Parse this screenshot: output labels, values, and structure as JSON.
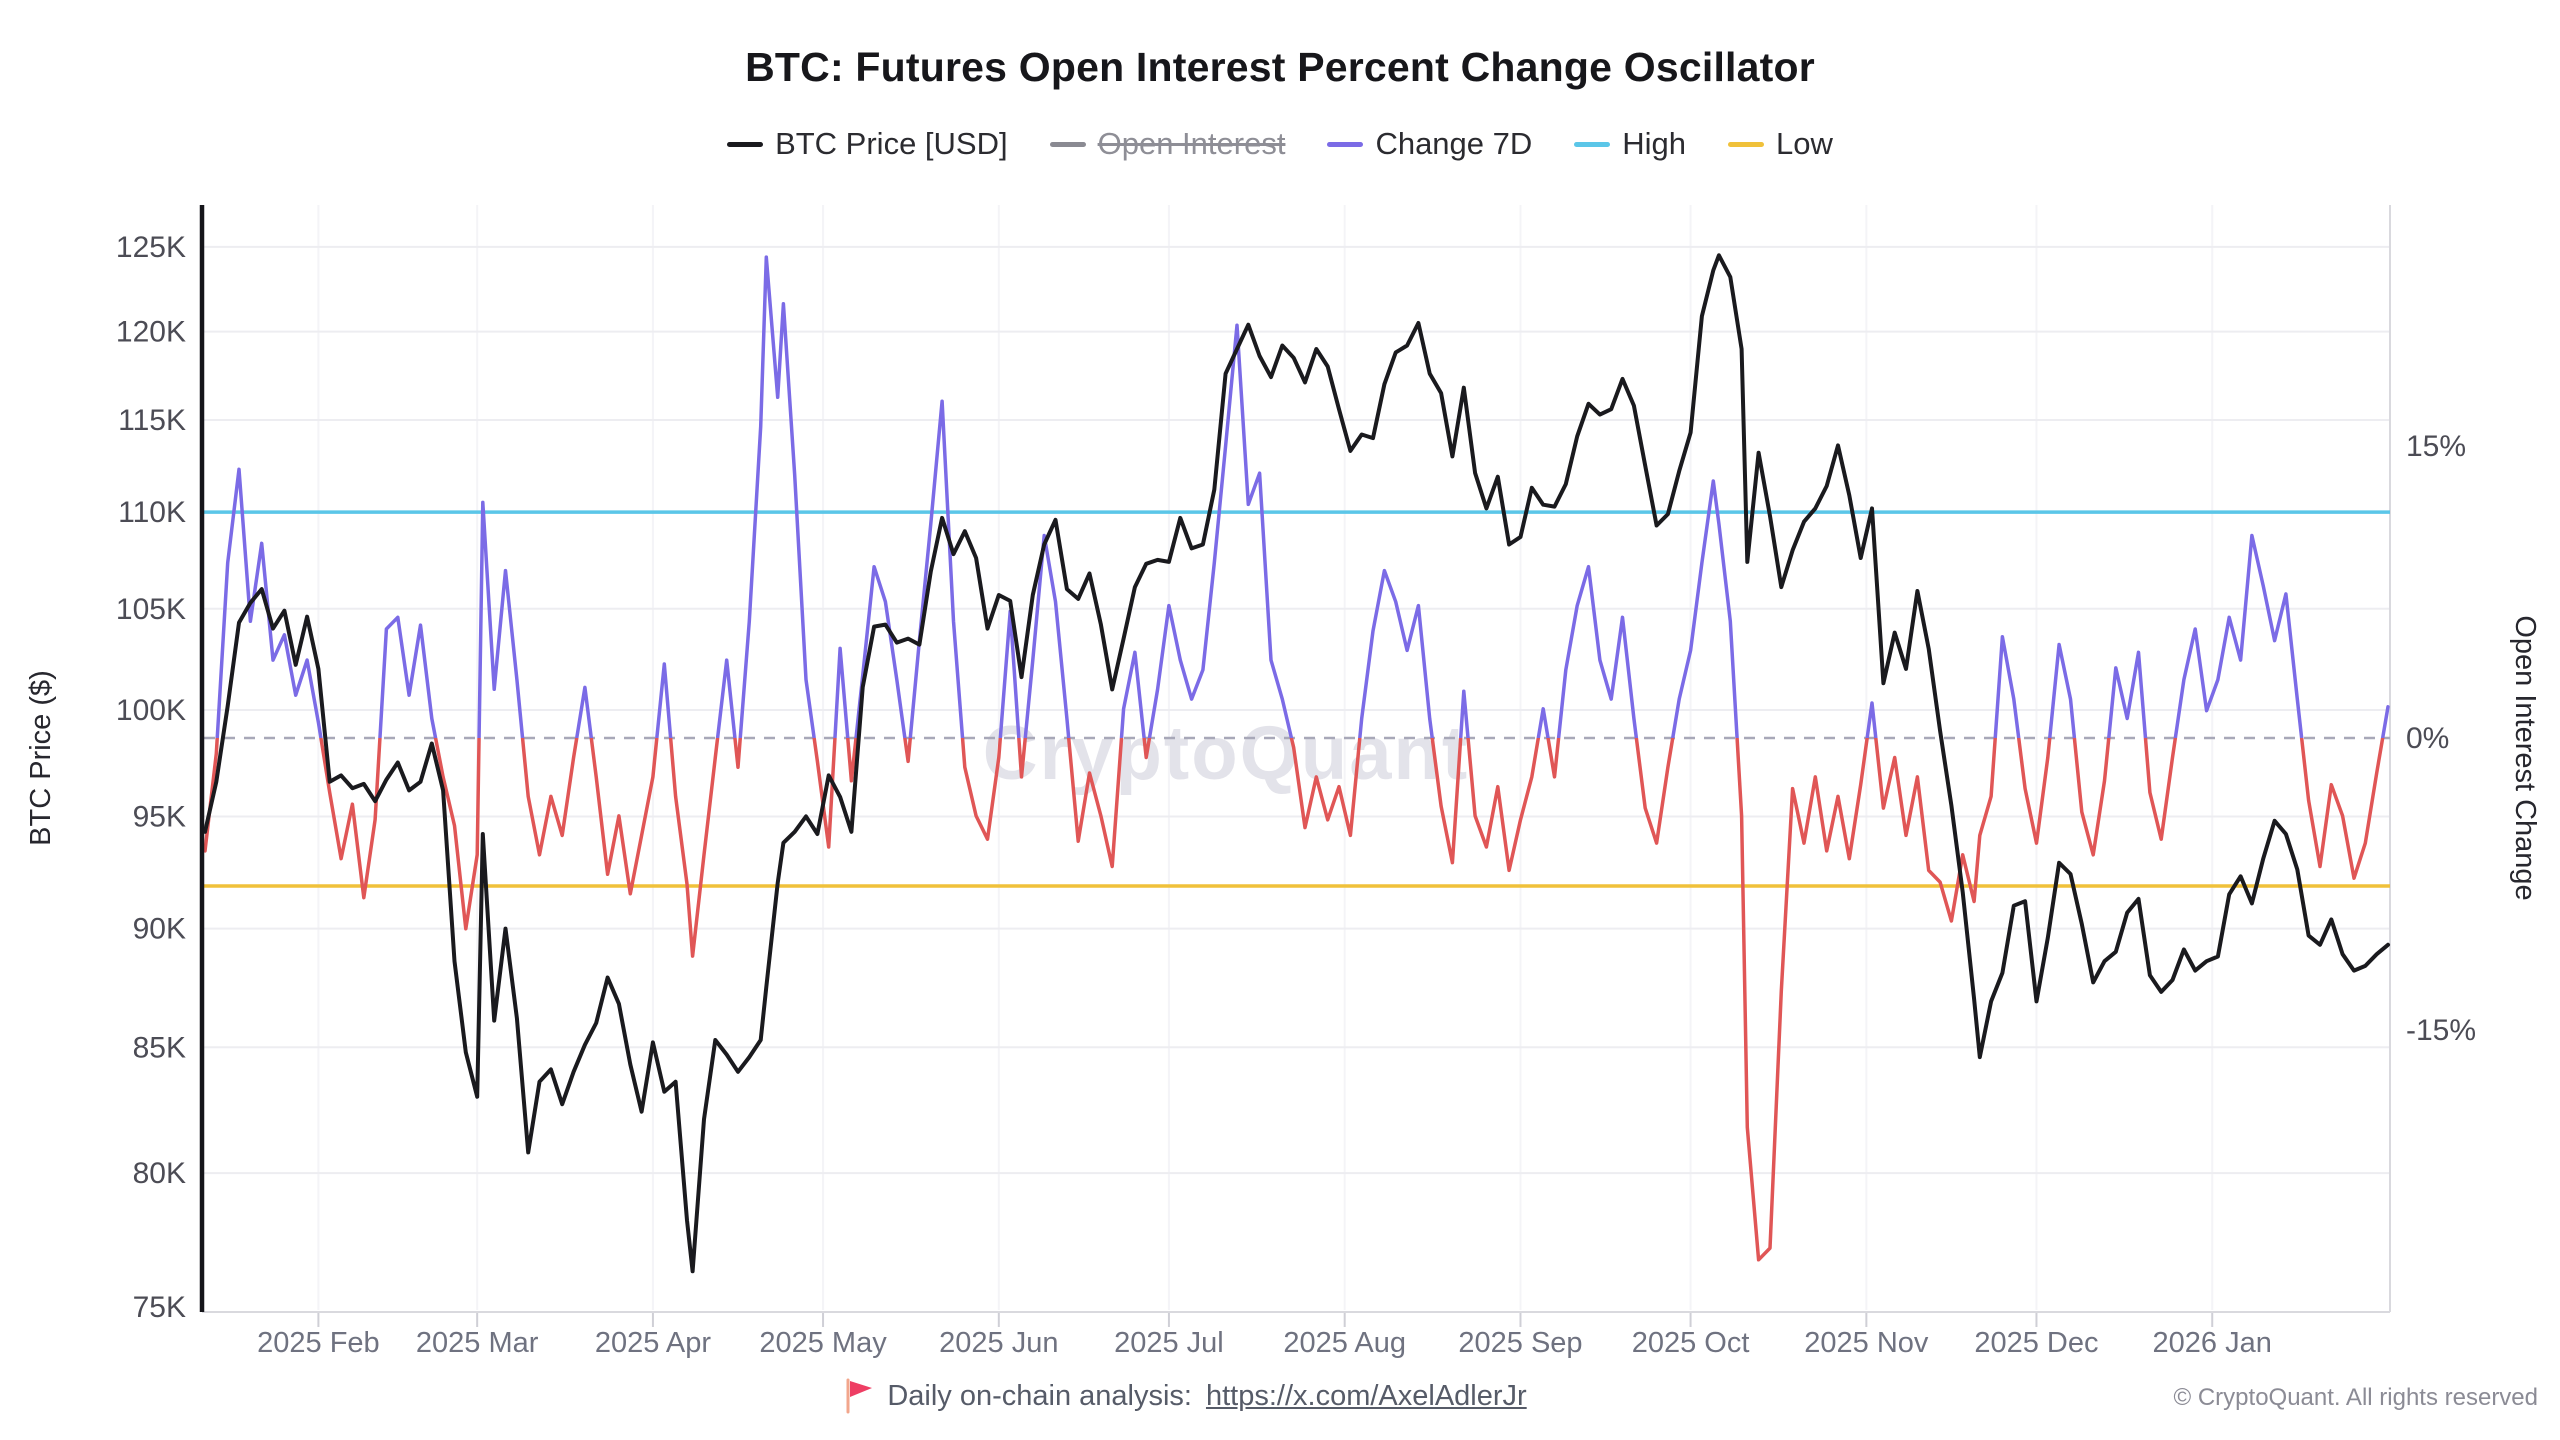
{
  "title": "BTC: Futures Open Interest Percent Change Oscillator",
  "legend": {
    "items": [
      {
        "label": "BTC Price [USD]",
        "color": "#1a1a1e",
        "disabled": false
      },
      {
        "label": "Open Interest",
        "color": "#8a8a92",
        "disabled": true
      },
      {
        "label": "Change 7D",
        "color": "#7b6be6",
        "disabled": false
      },
      {
        "label": "High",
        "color": "#5bc6e8",
        "disabled": false
      },
      {
        "label": "Low",
        "color": "#f0c13a",
        "disabled": false
      }
    ]
  },
  "watermark": "CryptoQuant",
  "footer": {
    "flag_icon": "red-flag",
    "text": "Daily on-chain analysis: ",
    "link": "https://x.com/AxelAdlerJr",
    "copyright": "© CryptoQuant. All rights reserved"
  },
  "chart_data": {
    "type": "line",
    "title": "BTC: Futures Open Interest Percent Change Oscillator",
    "left_axis": {
      "label": "BTC Price ($)",
      "scale": "log",
      "unit": "USD_thousands",
      "ticks": [
        "75K",
        "80K",
        "85K",
        "90K",
        "95K",
        "100K",
        "105K",
        "110K",
        "115K",
        "120K",
        "125K"
      ],
      "tick_values": [
        75,
        80,
        85,
        90,
        95,
        100,
        105,
        110,
        115,
        120,
        125
      ],
      "min": 75,
      "max": 125
    },
    "right_axis": {
      "label": "Open Interest Change",
      "unit": "%",
      "ticks": [
        "-15%",
        "0%",
        "15%"
      ],
      "tick_values": [
        -15,
        0,
        15
      ]
    },
    "x_ticks": [
      "2025 Feb",
      "2025 Mar",
      "2025 Apr",
      "2025 May",
      "2025 Jun",
      "2025 Jul",
      "2025 Aug",
      "2025 Sep",
      "2025 Oct",
      "2025 Nov",
      "2025 Dec",
      "2026 Jan"
    ],
    "zero_line": {
      "value": 0,
      "style": "dashed",
      "color": "#a8a8b8"
    },
    "high_line": {
      "label": "High",
      "value": 11.6,
      "color": "#5bc6e8"
    },
    "low_line": {
      "label": "Low",
      "value": -7.6,
      "color": "#f0c13a"
    },
    "legend_position": "top",
    "grid": true,
    "dates": [
      "2025-01-12",
      "2025-01-14",
      "2025-01-16",
      "2025-01-18",
      "2025-01-20",
      "2025-01-22",
      "2025-01-24",
      "2025-01-26",
      "2025-01-28",
      "2025-01-30",
      "2025-02-01",
      "2025-02-03",
      "2025-02-05",
      "2025-02-07",
      "2025-02-09",
      "2025-02-11",
      "2025-02-13",
      "2025-02-15",
      "2025-02-17",
      "2025-02-19",
      "2025-02-21",
      "2025-02-23",
      "2025-02-25",
      "2025-02-27",
      "2025-03-01",
      "2025-03-02",
      "2025-03-04",
      "2025-03-06",
      "2025-03-08",
      "2025-03-10",
      "2025-03-12",
      "2025-03-14",
      "2025-03-16",
      "2025-03-18",
      "2025-03-20",
      "2025-03-22",
      "2025-03-24",
      "2025-03-26",
      "2025-03-28",
      "2025-03-30",
      "2025-04-01",
      "2025-04-03",
      "2025-04-05",
      "2025-04-07",
      "2025-04-08",
      "2025-04-10",
      "2025-04-12",
      "2025-04-14",
      "2025-04-16",
      "2025-04-18",
      "2025-04-20",
      "2025-04-21",
      "2025-04-23",
      "2025-04-24",
      "2025-04-26",
      "2025-04-28",
      "2025-04-30",
      "2025-05-02",
      "2025-05-04",
      "2025-05-06",
      "2025-05-08",
      "2025-05-10",
      "2025-05-12",
      "2025-05-14",
      "2025-05-16",
      "2025-05-18",
      "2025-05-20",
      "2025-05-22",
      "2025-05-24",
      "2025-05-26",
      "2025-05-28",
      "2025-05-30",
      "2025-06-01",
      "2025-06-03",
      "2025-06-05",
      "2025-06-07",
      "2025-06-09",
      "2025-06-11",
      "2025-06-13",
      "2025-06-15",
      "2025-06-17",
      "2025-06-19",
      "2025-06-21",
      "2025-06-23",
      "2025-06-25",
      "2025-06-27",
      "2025-06-29",
      "2025-07-01",
      "2025-07-03",
      "2025-07-05",
      "2025-07-07",
      "2025-07-09",
      "2025-07-11",
      "2025-07-13",
      "2025-07-15",
      "2025-07-17",
      "2025-07-19",
      "2025-07-21",
      "2025-07-23",
      "2025-07-25",
      "2025-07-27",
      "2025-07-29",
      "2025-07-31",
      "2025-08-02",
      "2025-08-04",
      "2025-08-06",
      "2025-08-08",
      "2025-08-10",
      "2025-08-12",
      "2025-08-14",
      "2025-08-16",
      "2025-08-18",
      "2025-08-20",
      "2025-08-22",
      "2025-08-24",
      "2025-08-26",
      "2025-08-28",
      "2025-08-30",
      "2025-09-01",
      "2025-09-03",
      "2025-09-05",
      "2025-09-07",
      "2025-09-09",
      "2025-09-11",
      "2025-09-13",
      "2025-09-15",
      "2025-09-17",
      "2025-09-19",
      "2025-09-21",
      "2025-09-23",
      "2025-09-25",
      "2025-09-27",
      "2025-09-29",
      "2025-10-01",
      "2025-10-03",
      "2025-10-05",
      "2025-10-06",
      "2025-10-08",
      "2025-10-10",
      "2025-10-11",
      "2025-10-13",
      "2025-10-15",
      "2025-10-17",
      "2025-10-19",
      "2025-10-21",
      "2025-10-23",
      "2025-10-25",
      "2025-10-27",
      "2025-10-29",
      "2025-10-31",
      "2025-11-02",
      "2025-11-04",
      "2025-11-06",
      "2025-11-08",
      "2025-11-10",
      "2025-11-12",
      "2025-11-14",
      "2025-11-16",
      "2025-11-18",
      "2025-11-20",
      "2025-11-21",
      "2025-11-23",
      "2025-11-25",
      "2025-11-27",
      "2025-11-29",
      "2025-12-01",
      "2025-12-03",
      "2025-12-05",
      "2025-12-07",
      "2025-12-09",
      "2025-12-11",
      "2025-12-13",
      "2025-12-15",
      "2025-12-17",
      "2025-12-19",
      "2025-12-21",
      "2025-12-23",
      "2025-12-25",
      "2025-12-27",
      "2025-12-29",
      "2025-12-31",
      "2026-01-02",
      "2026-01-04",
      "2026-01-06",
      "2026-01-08",
      "2026-01-10",
      "2026-01-12",
      "2026-01-14",
      "2026-01-16",
      "2026-01-18",
      "2026-01-20",
      "2026-01-22",
      "2026-01-24",
      "2026-01-26",
      "2026-01-28",
      "2026-01-30",
      "2026-02-01"
    ],
    "series": [
      {
        "name": "BTC Price [USD]",
        "axis": "left",
        "unit": "USD_thousands",
        "color": "#1a1a1e",
        "values": [
          94.3,
          96.6,
          100.2,
          104.3,
          105.3,
          106.0,
          104.0,
          104.9,
          102.2,
          104.6,
          102.0,
          96.6,
          96.9,
          96.3,
          96.5,
          95.7,
          96.7,
          97.5,
          96.2,
          96.6,
          98.4,
          96.2,
          88.6,
          84.8,
          83.0,
          94.2,
          86.1,
          90.0,
          86.2,
          80.8,
          83.6,
          84.1,
          82.7,
          84.0,
          85.1,
          86.0,
          87.9,
          86.8,
          84.3,
          82.4,
          85.2,
          83.2,
          83.6,
          78.2,
          76.3,
          82.1,
          85.3,
          84.7,
          84.0,
          84.6,
          85.3,
          87.5,
          92.0,
          93.8,
          94.3,
          95.0,
          94.2,
          96.9,
          95.9,
          94.3,
          101.1,
          104.1,
          104.2,
          103.3,
          103.5,
          103.2,
          106.9,
          109.7,
          107.8,
          109.0,
          107.6,
          104.0,
          105.7,
          105.4,
          101.6,
          105.7,
          108.3,
          109.6,
          106.0,
          105.5,
          106.8,
          104.2,
          101.0,
          103.5,
          106.1,
          107.3,
          107.5,
          107.4,
          109.7,
          108.1,
          108.3,
          111.2,
          117.6,
          119.0,
          120.4,
          118.6,
          117.4,
          119.2,
          118.5,
          117.1,
          119.0,
          118.0,
          115.6,
          113.3,
          114.2,
          114.0,
          117.0,
          118.8,
          119.2,
          120.5,
          117.6,
          116.5,
          113.0,
          116.8,
          112.1,
          110.2,
          111.9,
          108.3,
          108.7,
          111.3,
          110.4,
          110.3,
          111.5,
          114.1,
          115.9,
          115.3,
          115.6,
          117.3,
          115.8,
          112.5,
          109.3,
          109.9,
          112.2,
          114.3,
          120.9,
          123.6,
          124.5,
          123.2,
          119.0,
          107.4,
          113.2,
          109.8,
          106.1,
          108.0,
          109.5,
          110.2,
          111.4,
          113.6,
          110.9,
          107.6,
          110.2,
          101.3,
          103.8,
          102.0,
          105.9,
          103.0,
          99.0,
          95.5,
          91.6,
          87.0,
          84.6,
          86.9,
          88.1,
          91.0,
          91.2,
          86.9,
          89.6,
          92.9,
          92.4,
          90.2,
          87.7,
          88.6,
          89.0,
          90.7,
          91.3,
          88.0,
          87.3,
          87.8,
          89.1,
          88.2,
          88.6,
          88.8,
          91.5,
          92.3,
          91.1,
          93.1,
          94.8,
          94.2,
          92.6,
          89.7,
          89.3,
          90.4,
          88.9,
          88.2,
          88.4,
          88.9,
          89.3
        ]
      },
      {
        "name": "Open Interest",
        "axis": "right",
        "hidden": true,
        "color": "#8a8a92",
        "values": []
      },
      {
        "name": "Change 7D",
        "axis": "right",
        "unit": "%",
        "color_positive": "#7b6be6",
        "color_negative": "#e05656",
        "values": [
          -5.8,
          -0.8,
          9.0,
          13.8,
          6.0,
          10.0,
          4.0,
          5.3,
          2.2,
          4.0,
          0.8,
          -2.8,
          -6.2,
          -3.4,
          -8.2,
          -4.2,
          5.6,
          6.2,
          2.2,
          5.8,
          1.0,
          -2.0,
          -4.5,
          -9.8,
          -6.0,
          12.1,
          2.5,
          8.6,
          3.0,
          -3.0,
          -6.0,
          -3.0,
          -5.0,
          -1.0,
          2.6,
          -2.0,
          -7.0,
          -4.0,
          -8.0,
          -5.0,
          -2.0,
          3.8,
          -3.0,
          -7.5,
          -11.2,
          -6.0,
          -1.0,
          4.0,
          -1.5,
          6.0,
          16.0,
          24.7,
          17.5,
          22.3,
          13.5,
          3.0,
          -1.2,
          -5.6,
          4.6,
          -2.2,
          3.2,
          8.8,
          7.0,
          3.0,
          -1.2,
          5.0,
          11.0,
          17.3,
          6.0,
          -1.5,
          -4.0,
          -5.2,
          -1.0,
          6.5,
          -2.0,
          4.0,
          10.4,
          7.0,
          1.0,
          -5.3,
          -1.8,
          -4.0,
          -6.6,
          1.5,
          4.4,
          -1.0,
          2.5,
          6.8,
          4.0,
          2.0,
          3.5,
          9.0,
          15.0,
          21.2,
          12.0,
          13.6,
          4.0,
          2.0,
          -0.5,
          -4.6,
          -2.0,
          -4.2,
          -2.5,
          -5.0,
          1.0,
          5.5,
          8.6,
          7.0,
          4.5,
          6.8,
          1.0,
          -3.5,
          -6.4,
          2.4,
          -4.0,
          -5.6,
          -2.5,
          -6.8,
          -4.2,
          -2.0,
          1.5,
          -2.0,
          3.5,
          6.8,
          8.8,
          4.0,
          2.0,
          6.2,
          1.0,
          -3.6,
          -5.4,
          -1.5,
          2.0,
          4.5,
          9.0,
          13.2,
          11.0,
          6.0,
          -4.0,
          -20.0,
          -26.8,
          -26.2,
          -13.0,
          -2.6,
          -5.4,
          -2.0,
          -5.8,
          -3.0,
          -6.2,
          -2.4,
          1.8,
          -3.6,
          -1.0,
          -5.0,
          -2.0,
          -6.8,
          -7.4,
          -9.4,
          -6.0,
          -8.4,
          -5.0,
          -3.0,
          5.2,
          2.0,
          -2.6,
          -5.4,
          -1.0,
          4.8,
          2.0,
          -3.8,
          -6.0,
          -2.2,
          3.6,
          1.0,
          4.4,
          -2.8,
          -5.2,
          -1.0,
          3.0,
          5.6,
          1.4,
          3.0,
          6.2,
          4.0,
          10.4,
          7.8,
          5.0,
          7.4,
          2.0,
          -3.2,
          -6.6,
          -2.4,
          -4.0,
          -7.2,
          -5.4,
          -1.8,
          1.6
        ]
      }
    ]
  },
  "colors": {
    "background": "#ffffff",
    "price_line": "#1a1a1e",
    "oscillator_positive": "#7b6be6",
    "oscillator_negative": "#e05656",
    "high_line": "#5bc6e8",
    "low_line": "#f0c13a",
    "zero_dashed": "#a8a8b8",
    "gridline": "#ededf1",
    "axis_tick_text": "#4c4c55",
    "month_text": "#6f7280",
    "watermark": "#e3e3ea",
    "flag": "#ee3e64"
  }
}
